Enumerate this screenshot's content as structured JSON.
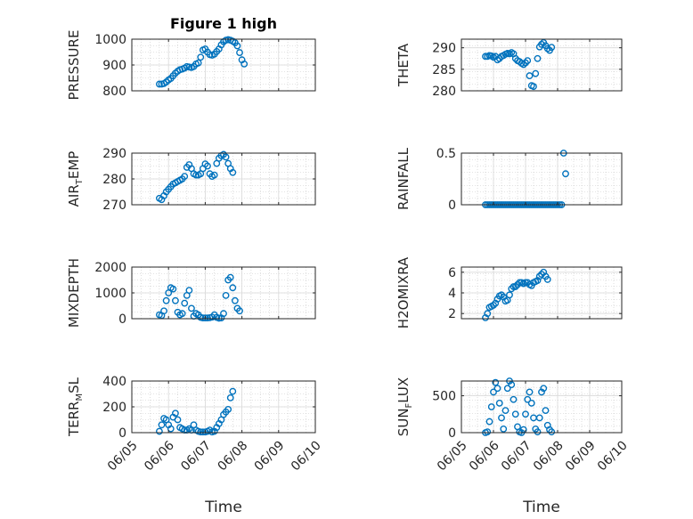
{
  "figure": {
    "title": "Figure 1 high"
  },
  "colors": {
    "marker": "#0072BD",
    "axis": "#262626",
    "grid": "#c7c7c7"
  },
  "chart_data": [
    {
      "type": "scatter",
      "id": "pressure",
      "ylabel": {
        "main": "PRESSURE",
        "sub": "",
        "tail": ""
      },
      "title": "Figure 1 high",
      "xlim": [
        "06/05",
        "06/10"
      ],
      "ylim": [
        800,
        1000
      ],
      "yticks": [
        800,
        900,
        1000
      ],
      "ytick_labels": [
        "800",
        "900",
        "1000"
      ],
      "xtick_labels": [],
      "xlabel": "",
      "x_start": 0.75,
      "x_step": 0.0625,
      "values": [
        826,
        826,
        828,
        834,
        842,
        848,
        858,
        868,
        876,
        882,
        884,
        888,
        894,
        892,
        890,
        894,
        904,
        908,
        930,
        958,
        962,
        950,
        940,
        938,
        942,
        952,
        962,
        978,
        990,
        996,
        998,
        996,
        992,
        986,
        974,
        948,
        920,
        904
      ]
    },
    {
      "type": "scatter",
      "id": "theta",
      "ylabel": {
        "main": "THETA",
        "sub": "",
        "tail": ""
      },
      "title": "",
      "xlim": [
        "06/05",
        "06/10"
      ],
      "ylim": [
        280,
        292
      ],
      "yticks": [
        280,
        285,
        290
      ],
      "ytick_labels": [
        "280",
        "285",
        "290"
      ],
      "xtick_labels": [],
      "xlabel": "",
      "x_start": 0.75,
      "x_step": 0.0625,
      "values": [
        288,
        288,
        288.2,
        288.1,
        287.8,
        288,
        287.2,
        287.5,
        288,
        288.2,
        288.5,
        288.7,
        288.6,
        288.9,
        288.6,
        287.5,
        287,
        286.8,
        286.4,
        286.1,
        286.5,
        287,
        283.5,
        281.2,
        281,
        284,
        287.5,
        290.2,
        290.8,
        291.2,
        290.5,
        289.8,
        289.4,
        290.1
      ]
    },
    {
      "type": "scatter",
      "id": "airtemp",
      "ylabel": {
        "main": "AIR",
        "sub": "T",
        "tail": "EMP"
      },
      "title": "",
      "xlim": [
        "06/05",
        "06/10"
      ],
      "ylim": [
        270,
        290
      ],
      "yticks": [
        270,
        280,
        290
      ],
      "ytick_labels": [
        "270",
        "280",
        "290"
      ],
      "xtick_labels": [],
      "xlabel": "",
      "x_start": 0.75,
      "x_step": 0.0625,
      "values": [
        272.5,
        272,
        273.5,
        275,
        276,
        277,
        278,
        278.5,
        279,
        279.5,
        280,
        281,
        284.5,
        285.5,
        284,
        282,
        281.5,
        281.5,
        282,
        284,
        285.8,
        285,
        282,
        281,
        281.5,
        286,
        288,
        289,
        289.5,
        288.5,
        286,
        284,
        282.5
      ]
    },
    {
      "type": "scatter",
      "id": "rainfall",
      "ylabel": {
        "main": "RAINFALL",
        "sub": "",
        "tail": ""
      },
      "title": "",
      "xlim": [
        "06/05",
        "06/10"
      ],
      "ylim": [
        0,
        0.5
      ],
      "yticks": [
        0,
        0.5
      ],
      "ytick_labels": [
        "0",
        "0.5"
      ],
      "xtick_labels": [],
      "xlabel": "",
      "x_start": 0.75,
      "x_step": 0.0625,
      "values": [
        0,
        0,
        0,
        0,
        0,
        0,
        0,
        0,
        0,
        0,
        0,
        0,
        0,
        0,
        0,
        0,
        0,
        0,
        0,
        0,
        0,
        0,
        0,
        0,
        0,
        0,
        0,
        0,
        0,
        0,
        0,
        0,
        0,
        0,
        0,
        0,
        0,
        0,
        0,
        0.5,
        0.3
      ]
    },
    {
      "type": "scatter",
      "id": "mixdepth",
      "ylabel": {
        "main": "MIXDEPTH",
        "sub": "",
        "tail": ""
      },
      "title": "",
      "xlim": [
        "06/05",
        "06/10"
      ],
      "ylim": [
        0,
        2000
      ],
      "yticks": [
        0,
        1000,
        2000
      ],
      "ytick_labels": [
        "0",
        "1000",
        "2000"
      ],
      "xtick_labels": [],
      "xlabel": "",
      "x_start": 0.75,
      "x_step": 0.0625,
      "values": [
        150,
        120,
        300,
        700,
        1000,
        1200,
        1150,
        700,
        250,
        150,
        200,
        600,
        900,
        1100,
        400,
        100,
        200,
        150,
        50,
        30,
        30,
        30,
        40,
        60,
        150,
        50,
        20,
        30,
        200,
        900,
        1500,
        1600,
        1200,
        700,
        400,
        300
      ]
    },
    {
      "type": "scatter",
      "id": "h2omixra",
      "ylabel": {
        "main": "H2OMIXRA",
        "sub": "",
        "tail": ""
      },
      "title": "",
      "xlim": [
        "06/05",
        "06/10"
      ],
      "ylim": [
        1.5,
        6.5
      ],
      "yticks": [
        2,
        4,
        6
      ],
      "ytick_labels": [
        "2",
        "4",
        "6"
      ],
      "xtick_labels": [],
      "xlabel": "",
      "x_start": 0.75,
      "x_step": 0.0625,
      "values": [
        1.6,
        2.0,
        2.6,
        2.7,
        2.8,
        3.0,
        3.4,
        3.7,
        3.8,
        3.6,
        3.2,
        3.3,
        3.8,
        4.4,
        4.6,
        4.6,
        4.8,
        5.0,
        5.0,
        4.9,
        5.0,
        5.0,
        4.8,
        4.7,
        5.0,
        5.1,
        5.2,
        5.6,
        5.8,
        6.0,
        5.6,
        5.3
      ]
    },
    {
      "type": "scatter",
      "id": "terrmsl",
      "ylabel": {
        "main": "TERR",
        "sub": "M",
        "tail": "SL"
      },
      "title": "",
      "xlim": [
        "06/05",
        "06/10"
      ],
      "ylim": [
        0,
        400
      ],
      "yticks": [
        0,
        200,
        400
      ],
      "ytick_labels": [
        "0",
        "200",
        "400"
      ],
      "xtick_labels": [
        "06/05",
        "06/06",
        "06/07",
        "06/08",
        "06/09",
        "06/10"
      ],
      "xlabel": "Time",
      "x_start": 0.75,
      "x_step": 0.0625,
      "values": [
        10,
        60,
        110,
        100,
        60,
        30,
        120,
        150,
        100,
        40,
        30,
        20,
        20,
        30,
        20,
        60,
        20,
        10,
        5,
        5,
        5,
        10,
        20,
        5,
        10,
        40,
        70,
        100,
        140,
        160,
        180,
        270,
        320
      ]
    },
    {
      "type": "scatter",
      "id": "sunflux",
      "ylabel": {
        "main": "SUN",
        "sub": "F",
        "tail": "LUX"
      },
      "title": "",
      "xlim": [
        "06/05",
        "06/10"
      ],
      "ylim": [
        0,
        700
      ],
      "yticks": [
        0,
        500
      ],
      "ytick_labels": [
        "0",
        "500"
      ],
      "xtick_labels": [
        "06/05",
        "06/06",
        "06/07",
        "06/08",
        "06/09",
        "06/10"
      ],
      "xlabel": "Time",
      "x_start": 0.75,
      "x_step": 0.0625,
      "values": [
        0,
        10,
        150,
        350,
        550,
        680,
        600,
        400,
        200,
        50,
        300,
        600,
        700,
        650,
        450,
        250,
        80,
        10,
        0,
        40,
        250,
        450,
        550,
        400,
        200,
        50,
        10,
        200,
        550,
        600,
        300,
        100,
        40,
        10
      ]
    }
  ]
}
